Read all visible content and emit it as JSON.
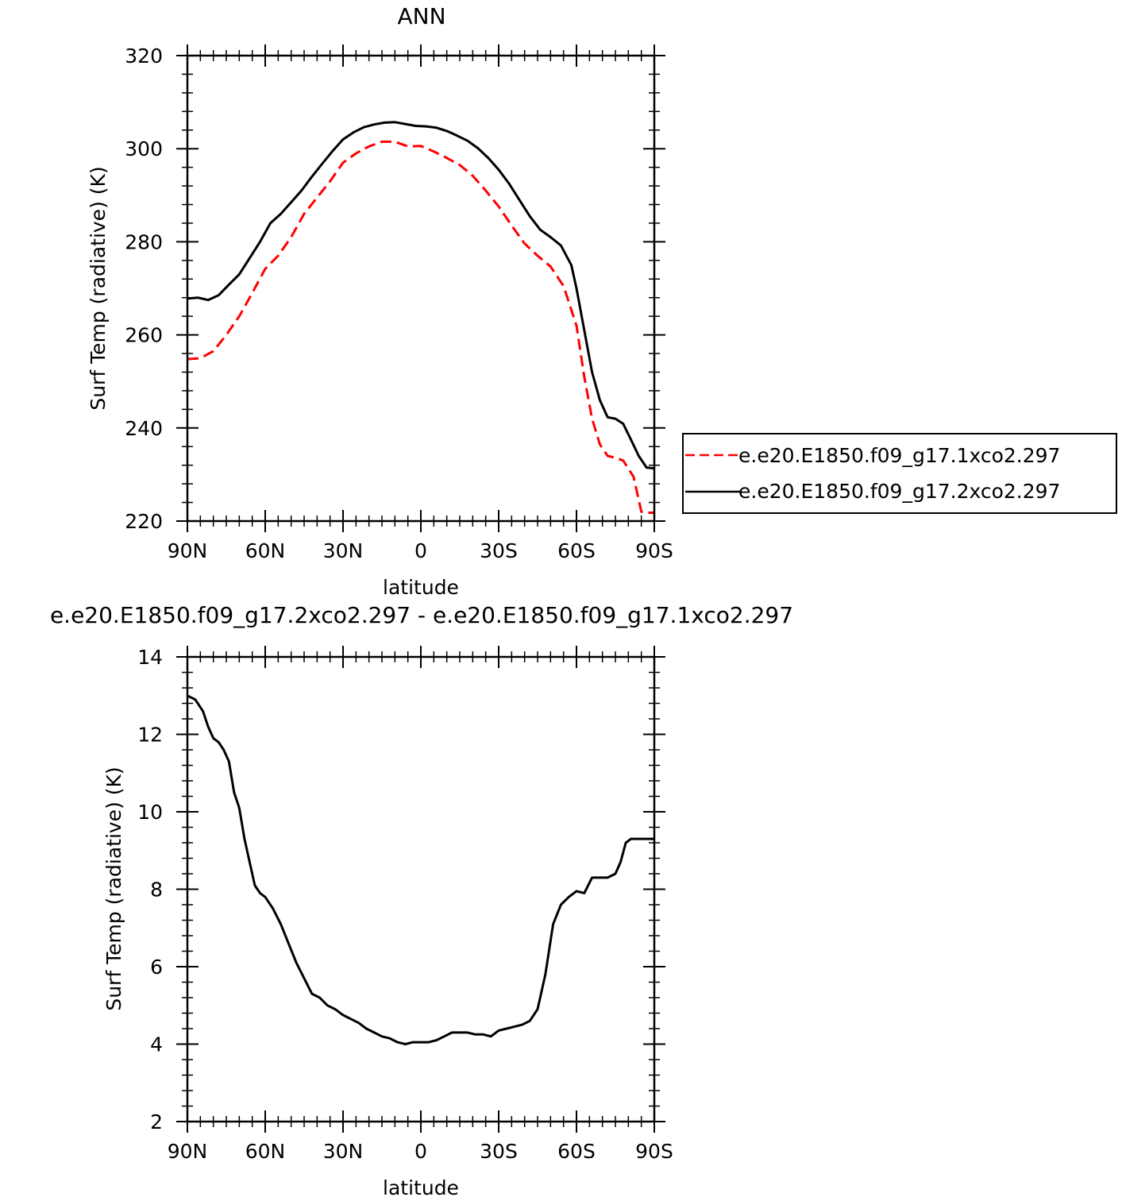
{
  "chart_data": [
    {
      "type": "line",
      "title": "ANN",
      "xlabel": "latitude",
      "ylabel": "Surf Temp (radiative) (K)",
      "xlim": [
        90,
        -90
      ],
      "ylim": [
        220,
        320
      ],
      "xticks": [
        90,
        60,
        30,
        0,
        -30,
        -60,
        -90
      ],
      "xtick_labels": [
        "90N",
        "60N",
        "30N",
        "0",
        "30S",
        "60S",
        "90S"
      ],
      "yticks": [
        220,
        240,
        260,
        280,
        300,
        320
      ],
      "ytick_labels": [
        "220",
        "240",
        "260",
        "280",
        "300",
        "320"
      ],
      "grid": false,
      "legend_position": "right, outside plot",
      "series": [
        {
          "name": "e.e20.E1850.f09_g17.1xco2.297",
          "color": "#ff0000",
          "dash": "dashed",
          "x": [
            90,
            85,
            80,
            75,
            70,
            65,
            60,
            55,
            50,
            45,
            40,
            35,
            30,
            25,
            20,
            15,
            10,
            5,
            0,
            -5,
            -10,
            -15,
            -20,
            -25,
            -30,
            -35,
            -40,
            -45,
            -50,
            -55,
            -60,
            -63,
            -66,
            -69,
            -72,
            -75,
            -78,
            -82,
            -85,
            -88,
            -90
          ],
          "y": [
            254.8,
            255,
            256.5,
            260,
            264,
            269,
            274.2,
            277,
            281,
            286,
            289.5,
            293,
            297,
            299,
            300.5,
            301.5,
            301.5,
            300.5,
            300.6,
            299.4,
            298,
            296.5,
            294.2,
            291,
            287.6,
            283.5,
            279.6,
            277,
            274.7,
            270.5,
            262,
            251,
            242,
            236.5,
            234,
            233.6,
            233,
            229.5,
            222,
            221.8,
            221.8
          ]
        },
        {
          "name": "e.e20.E1850.f09_g17.2xco2.297",
          "color": "#000000",
          "dash": "solid",
          "x": [
            90,
            86,
            82,
            78,
            74,
            70,
            66,
            62,
            58,
            54,
            50,
            46,
            42,
            38,
            34,
            30,
            26,
            22,
            18,
            14,
            10,
            6,
            2,
            -2,
            -6,
            -10,
            -14,
            -18,
            -22,
            -26,
            -30,
            -34,
            -38,
            -42,
            -46,
            -50,
            -54,
            -58,
            -60,
            -63,
            -66,
            -69,
            -72,
            -75,
            -78,
            -81,
            -84,
            -87,
            -90
          ],
          "y": [
            267.8,
            268,
            267.5,
            268.5,
            270.8,
            273,
            276.5,
            280,
            284,
            286,
            288.5,
            291,
            294,
            296.8,
            299.5,
            302,
            303.5,
            304.6,
            305.2,
            305.6,
            305.7,
            305.3,
            304.9,
            304.8,
            304.5,
            303.8,
            302.8,
            301.7,
            300.1,
            298,
            295.5,
            292.5,
            289,
            285.5,
            282.6,
            281,
            279.2,
            275,
            270,
            261,
            252,
            246,
            242.3,
            242,
            240.9,
            237.5,
            234,
            231.5,
            231.3
          ]
        }
      ]
    },
    {
      "type": "line",
      "title": "e.e20.E1850.f09_g17.2xco2.297 - e.e20.E1850.f09_g17.1xco2.297",
      "xlabel": "latitude",
      "ylabel": "Surf Temp (radiative) (K)",
      "xlim": [
        90,
        -90
      ],
      "ylim": [
        2,
        14
      ],
      "xticks": [
        90,
        60,
        30,
        0,
        -30,
        -60,
        -90
      ],
      "xtick_labels": [
        "90N",
        "60N",
        "30N",
        "0",
        "30S",
        "60S",
        "90S"
      ],
      "yticks": [
        2,
        4,
        6,
        8,
        10,
        12,
        14
      ],
      "ytick_labels": [
        "2",
        "4",
        "6",
        "8",
        "10",
        "12",
        "14"
      ],
      "grid": false,
      "series": [
        {
          "color": "#000000",
          "dash": "solid",
          "x": [
            90,
            87,
            84,
            82,
            80,
            78,
            76,
            74,
            72,
            70,
            68,
            66,
            64,
            62,
            60,
            57,
            54,
            51,
            48,
            45,
            42,
            39,
            36,
            33,
            30,
            27,
            24,
            21,
            18,
            15,
            12,
            9,
            6,
            3,
            0,
            -3,
            -6,
            -9,
            -12,
            -15,
            -18,
            -21,
            -24,
            -27,
            -30,
            -33,
            -36,
            -39,
            -42,
            -45,
            -48,
            -51,
            -54,
            -57,
            -60,
            -63,
            -66,
            -69,
            -72,
            -75,
            -77,
            -79,
            -81,
            -83,
            -85,
            -87,
            -90
          ],
          "y": [
            13,
            12.9,
            12.6,
            12.2,
            11.9,
            11.8,
            11.6,
            11.3,
            10.5,
            10.1,
            9.3,
            8.7,
            8.1,
            7.9,
            7.8,
            7.5,
            7.1,
            6.6,
            6.1,
            5.7,
            5.3,
            5.2,
            5.0,
            4.9,
            4.75,
            4.65,
            4.55,
            4.4,
            4.3,
            4.2,
            4.15,
            4.05,
            4.0,
            4.05,
            4.05,
            4.05,
            4.1,
            4.2,
            4.3,
            4.3,
            4.3,
            4.25,
            4.25,
            4.2,
            4.35,
            4.4,
            4.45,
            4.5,
            4.6,
            4.9,
            5.8,
            7.1,
            7.6,
            7.8,
            7.95,
            7.9,
            8.3,
            8.3,
            8.3,
            8.4,
            8.7,
            9.2,
            9.3,
            9.3,
            9.3,
            9.3,
            9.3
          ]
        }
      ]
    }
  ]
}
